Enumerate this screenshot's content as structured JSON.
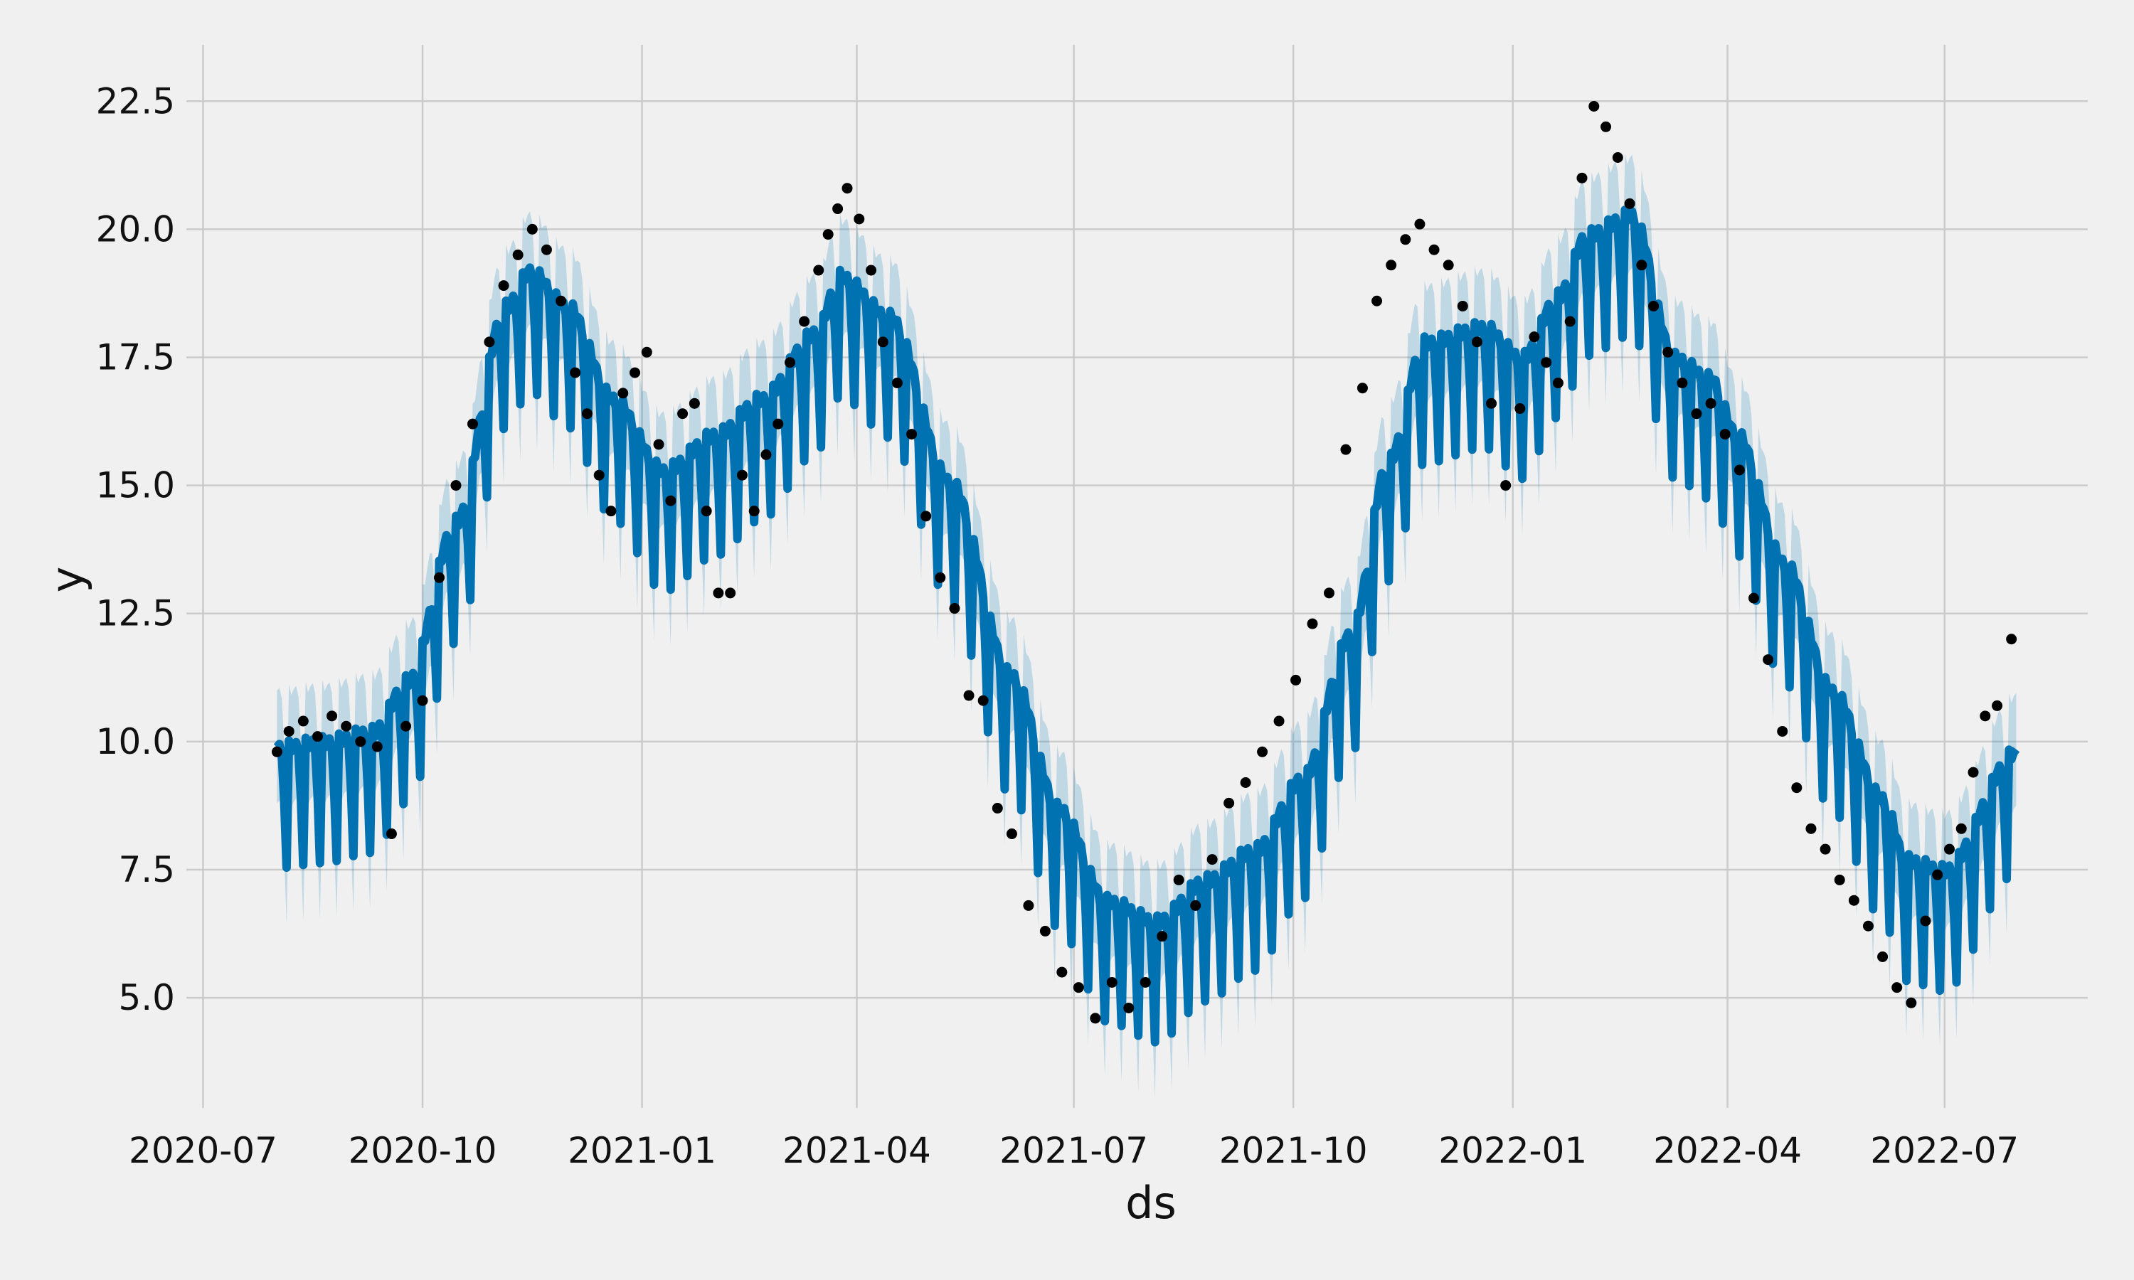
{
  "chart_data": {
    "type": "line",
    "title": "",
    "xlabel": "ds",
    "ylabel": "y",
    "x_start": "2020-08-01",
    "x_end": "2022-07-31",
    "xlim": [
      "2020-06-24",
      "2022-08-30"
    ],
    "ylim": [
      2.85,
      23.6
    ],
    "grid": true,
    "x_tick_labels": [
      "2020-07",
      "2020-10",
      "2021-01",
      "2021-04",
      "2021-07",
      "2021-10",
      "2022-01",
      "2022-04",
      "2022-07"
    ],
    "x_tick_dates": [
      "2020-07-01",
      "2020-10-01",
      "2021-01-01",
      "2021-04-01",
      "2021-07-01",
      "2021-10-01",
      "2022-01-01",
      "2022-04-01",
      "2022-07-01"
    ],
    "y_ticks": [
      5.0,
      7.5,
      10.0,
      12.5,
      15.0,
      17.5,
      20.0,
      22.5
    ],
    "y_tick_labels": [
      "5.0",
      "7.5",
      "10.0",
      "12.5",
      "15.0",
      "17.5",
      "20.0",
      "22.5"
    ],
    "trend_knots": {
      "dates": [
        "2020-08-01",
        "2020-08-20",
        "2020-09-10",
        "2020-09-25",
        "2020-10-15",
        "2020-11-05",
        "2020-11-15",
        "2020-12-01",
        "2020-12-20",
        "2021-01-10",
        "2021-02-01",
        "2021-02-20",
        "2021-03-15",
        "2021-03-25",
        "2021-04-15",
        "2021-05-10",
        "2021-06-05",
        "2021-06-25",
        "2021-07-15",
        "2021-08-05",
        "2021-08-25",
        "2021-09-15",
        "2021-10-05",
        "2021-10-25",
        "2021-11-10",
        "2021-11-25",
        "2021-12-20",
        "2022-01-05",
        "2022-01-20",
        "2022-02-01",
        "2022-02-20",
        "2022-03-10",
        "2022-03-25",
        "2022-04-05",
        "2022-04-25",
        "2022-05-15",
        "2022-06-05",
        "2022-06-15",
        "2022-07-01",
        "2022-07-31"
      ],
      "values": [
        9.4,
        9.5,
        9.7,
        10.7,
        13.8,
        18.0,
        18.7,
        18.0,
        16.2,
        14.8,
        15.5,
        16.2,
        17.5,
        18.6,
        17.8,
        14.6,
        10.8,
        8.2,
        6.4,
        6.0,
        6.8,
        7.4,
        8.8,
        11.6,
        15.0,
        17.3,
        17.6,
        17.0,
        18.2,
        19.4,
        19.8,
        17.0,
        16.6,
        15.5,
        13.0,
        10.5,
        8.4,
        7.2,
        7.0,
        9.3
      ]
    },
    "weekly_amplitude": 1.1,
    "interval_halfwidth": 1.1,
    "observations": {
      "dates": [
        "2020-08-01",
        "2020-08-06",
        "2020-08-12",
        "2020-08-18",
        "2020-08-24",
        "2020-08-30",
        "2020-09-05",
        "2020-09-12",
        "2020-09-18",
        "2020-09-24",
        "2020-10-01",
        "2020-10-08",
        "2020-10-15",
        "2020-10-22",
        "2020-10-29",
        "2020-11-04",
        "2020-11-10",
        "2020-11-16",
        "2020-11-22",
        "2020-11-28",
        "2020-12-04",
        "2020-12-09",
        "2020-12-14",
        "2020-12-19",
        "2020-12-24",
        "2020-12-29",
        "2021-01-03",
        "2021-01-08",
        "2021-01-13",
        "2021-01-18",
        "2021-01-23",
        "2021-01-28",
        "2021-02-02",
        "2021-02-07",
        "2021-02-12",
        "2021-02-17",
        "2021-02-22",
        "2021-02-27",
        "2021-03-04",
        "2021-03-10",
        "2021-03-16",
        "2021-03-20",
        "2021-03-24",
        "2021-03-28",
        "2021-04-02",
        "2021-04-07",
        "2021-04-12",
        "2021-04-18",
        "2021-04-24",
        "2021-04-30",
        "2021-05-06",
        "2021-05-12",
        "2021-05-18",
        "2021-05-24",
        "2021-05-30",
        "2021-06-05",
        "2021-06-12",
        "2021-06-19",
        "2021-06-26",
        "2021-07-03",
        "2021-07-10",
        "2021-07-17",
        "2021-07-24",
        "2021-07-31",
        "2021-08-07",
        "2021-08-14",
        "2021-08-21",
        "2021-08-28",
        "2021-09-04",
        "2021-09-11",
        "2021-09-18",
        "2021-09-25",
        "2021-10-02",
        "2021-10-09",
        "2021-10-16",
        "2021-10-23",
        "2021-10-30",
        "2021-11-05",
        "2021-11-11",
        "2021-11-17",
        "2021-11-23",
        "2021-11-29",
        "2021-12-05",
        "2021-12-11",
        "2021-12-17",
        "2021-12-23",
        "2021-12-29",
        "2022-01-04",
        "2022-01-10",
        "2022-01-15",
        "2022-01-20",
        "2022-01-25",
        "2022-01-30",
        "2022-02-04",
        "2022-02-09",
        "2022-02-14",
        "2022-02-19",
        "2022-02-24",
        "2022-03-01",
        "2022-03-07",
        "2022-03-13",
        "2022-03-19",
        "2022-03-25",
        "2022-03-31",
        "2022-04-06",
        "2022-04-12",
        "2022-04-18",
        "2022-04-24",
        "2022-04-30",
        "2022-05-06",
        "2022-05-12",
        "2022-05-18",
        "2022-05-24",
        "2022-05-30",
        "2022-06-05",
        "2022-06-11",
        "2022-06-17",
        "2022-06-23",
        "2022-06-28",
        "2022-07-03",
        "2022-07-08",
        "2022-07-13",
        "2022-07-18",
        "2022-07-23",
        "2022-07-29"
      ],
      "values": [
        9.8,
        10.2,
        10.4,
        10.1,
        10.5,
        10.3,
        10.0,
        9.9,
        8.2,
        10.3,
        10.8,
        13.2,
        15.0,
        16.2,
        17.8,
        18.9,
        19.5,
        20.0,
        19.6,
        18.6,
        17.2,
        16.4,
        15.2,
        14.5,
        16.8,
        17.2,
        17.6,
        15.8,
        14.7,
        16.4,
        16.6,
        14.5,
        12.9,
        12.9,
        15.2,
        14.5,
        15.6,
        16.2,
        17.4,
        18.2,
        19.2,
        19.9,
        20.4,
        20.8,
        20.2,
        19.2,
        17.8,
        17.0,
        16.0,
        14.4,
        13.2,
        12.6,
        10.9,
        10.8,
        8.7,
        8.2,
        6.8,
        6.3,
        5.5,
        5.2,
        4.6,
        5.3,
        4.8,
        5.3,
        6.2,
        7.3,
        6.8,
        7.7,
        8.8,
        9.2,
        9.8,
        10.4,
        11.2,
        12.3,
        12.9,
        15.7,
        16.9,
        18.6,
        19.3,
        19.8,
        20.1,
        19.6,
        19.3,
        18.5,
        17.8,
        16.6,
        15.0,
        16.5,
        17.9,
        17.4,
        17.0,
        18.2,
        21.0,
        22.4,
        22.0,
        21.4,
        20.5,
        19.3,
        18.5,
        17.6,
        17.0,
        16.4,
        16.6,
        16.0,
        15.3,
        12.8,
        11.6,
        10.2,
        9.1,
        8.3,
        7.9,
        7.3,
        6.9,
        6.4,
        5.8,
        5.2,
        4.9,
        6.5,
        7.4,
        7.9,
        8.3,
        9.4,
        10.5,
        10.7,
        12.0
      ]
    }
  }
}
